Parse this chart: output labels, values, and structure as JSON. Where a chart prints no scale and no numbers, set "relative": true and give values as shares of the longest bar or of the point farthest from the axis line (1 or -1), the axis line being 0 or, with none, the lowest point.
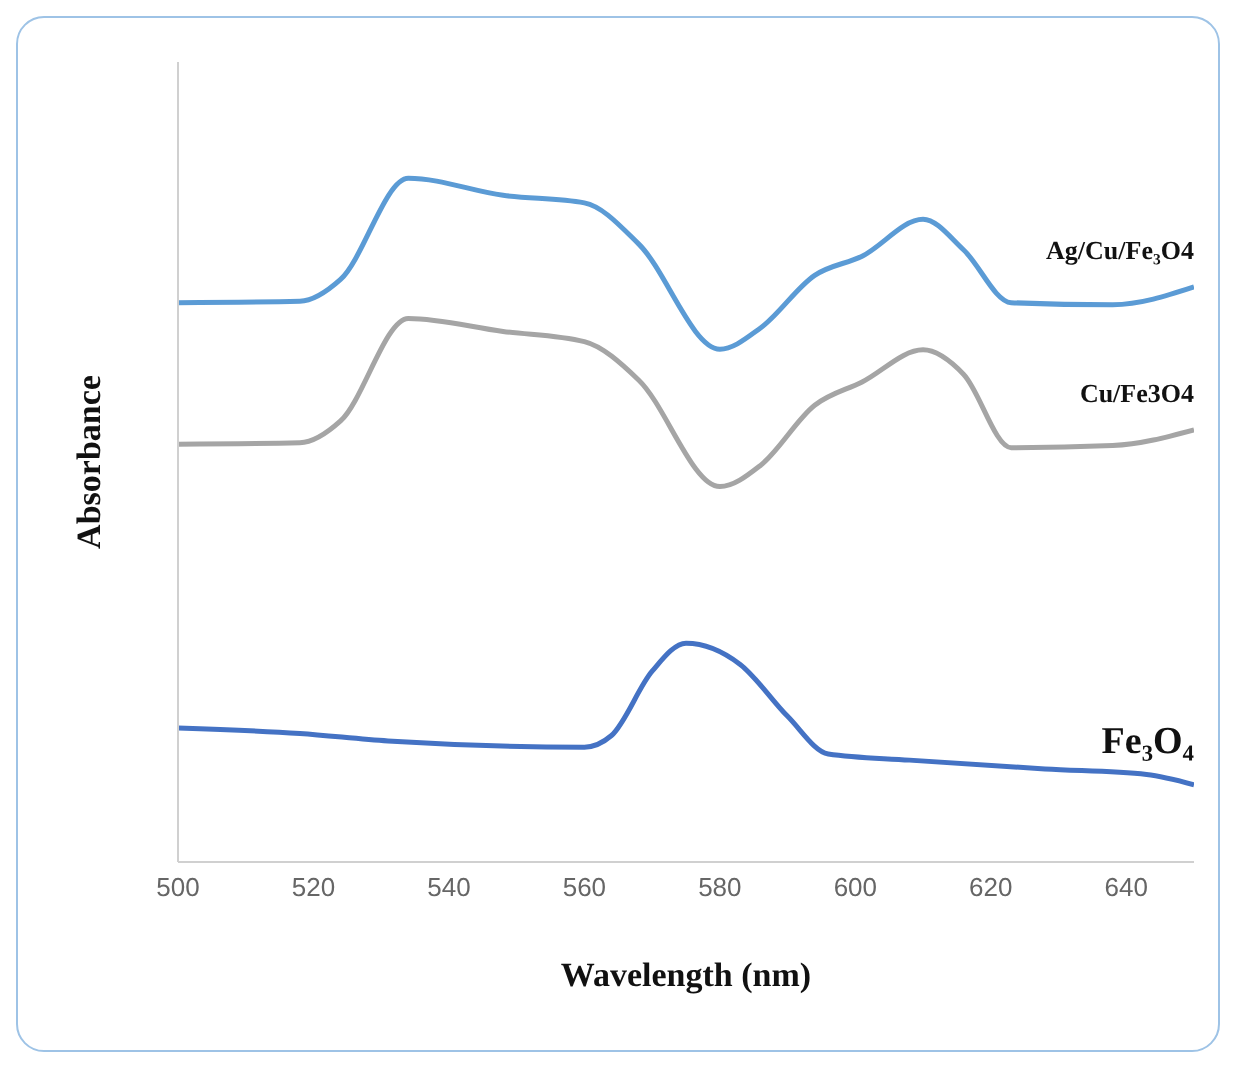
{
  "chart_data": {
    "type": "line",
    "xlabel": "Wavelength (nm)",
    "ylabel": "Absorbance",
    "relative": true,
    "xlim": [
      500,
      650
    ],
    "xticks": [
      500,
      520,
      540,
      560,
      580,
      600,
      620,
      640
    ],
    "legend": false,
    "grid": false,
    "marker": "none",
    "line_style": "solid",
    "series": [
      {
        "name": "Ag/Cu/Fe₃O4",
        "color": "#5b9bd5",
        "x": [
          500,
          518,
          524,
          534,
          548,
          560,
          568,
          580,
          586,
          594,
          601,
          610,
          616,
          623,
          638,
          650
        ],
        "values": [
          0.818,
          0.82,
          0.852,
          1,
          0.975,
          0.964,
          0.904,
          0.75,
          0.781,
          0.858,
          0.886,
          0.94,
          0.895,
          0.818,
          0.815,
          0.841
        ]
      },
      {
        "name": "Cu/Fe3O4",
        "color": "#a5a5a5",
        "x": [
          500,
          518,
          524,
          534,
          548,
          560,
          568,
          580,
          586,
          594,
          601,
          610,
          616,
          623,
          638,
          650
        ],
        "values": [
          0.611,
          0.613,
          0.645,
          0.795,
          0.776,
          0.761,
          0.705,
          0.549,
          0.58,
          0.668,
          0.702,
          0.749,
          0.713,
          0.606,
          0.609,
          0.632
        ]
      },
      {
        "name": "Fe₃O₄",
        "color": "#4472c4",
        "x": [
          500,
          518,
          531,
          560,
          564,
          570,
          575,
          583,
          590,
          596,
          608,
          628,
          643,
          650
        ],
        "values": [
          0.196,
          0.188,
          0.177,
          0.168,
          0.185,
          0.279,
          0.32,
          0.289,
          0.213,
          0.158,
          0.149,
          0.136,
          0.128,
          0.113
        ]
      }
    ]
  }
}
